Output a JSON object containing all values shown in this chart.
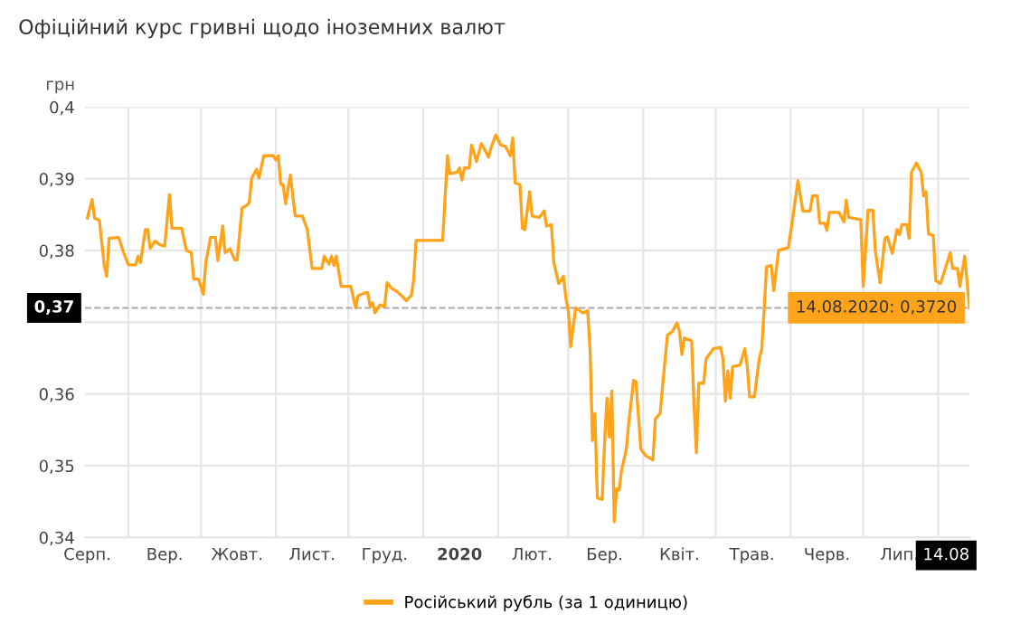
{
  "chart_data": {
    "type": "line",
    "title": "Офіційний курс гривні щодо іноземних валют",
    "ylabel": "грн",
    "x": [
      "2019-08-15",
      "2019-08-17",
      "2019-08-18",
      "2019-08-20",
      "2019-08-22",
      "2019-08-23",
      "2019-08-24",
      "2019-08-28",
      "2019-08-30",
      "2019-09-01",
      "2019-09-04",
      "2019-09-05",
      "2019-09-06",
      "2019-09-08",
      "2019-09-09",
      "2019-09-10",
      "2019-09-12",
      "2019-09-14",
      "2019-09-16",
      "2019-09-18",
      "2019-09-19",
      "2019-09-23",
      "2019-09-25",
      "2019-09-27",
      "2019-09-28",
      "2019-09-30",
      "2019-10-02",
      "2019-10-03",
      "2019-10-05",
      "2019-10-07",
      "2019-10-08",
      "2019-10-10",
      "2019-10-11",
      "2019-10-13",
      "2019-10-15",
      "2019-10-16",
      "2019-10-18",
      "2019-10-20",
      "2019-10-21",
      "2019-10-22",
      "2019-10-24",
      "2019-10-25",
      "2019-10-27",
      "2019-10-31",
      "2019-11-01",
      "2019-11-02",
      "2019-11-03",
      "2019-11-04",
      "2019-11-05",
      "2019-11-07",
      "2019-11-09",
      "2019-11-12",
      "2019-11-14",
      "2019-11-16",
      "2019-11-20",
      "2019-11-21",
      "2019-11-23",
      "2019-11-24",
      "2019-11-25",
      "2019-11-26",
      "2019-11-28",
      "2019-12-02",
      "2019-12-04",
      "2019-12-05",
      "2019-12-08",
      "2019-12-09",
      "2019-12-10",
      "2019-12-11",
      "2019-12-12",
      "2019-12-14",
      "2019-12-16",
      "2019-12-17",
      "2019-12-19",
      "2019-12-21",
      "2019-12-23",
      "2019-12-25",
      "2019-12-27",
      "2019-12-28",
      "2019-12-29",
      "2020-01-09",
      "2020-01-11",
      "2020-01-12",
      "2020-01-15",
      "2020-01-16",
      "2020-01-17",
      "2020-01-18",
      "2020-01-20",
      "2020-01-21",
      "2020-01-23",
      "2020-01-25",
      "2020-01-28",
      "2020-01-29",
      "2020-01-31",
      "2020-02-02",
      "2020-02-04",
      "2020-02-06",
      "2020-02-07",
      "2020-02-08",
      "2020-02-10",
      "2020-02-11",
      "2020-02-12",
      "2020-02-14",
      "2020-02-15",
      "2020-02-18",
      "2020-02-20",
      "2020-02-21",
      "2020-02-23",
      "2020-02-24",
      "2020-02-26",
      "2020-02-28",
      "2020-02-29",
      "2020-03-01",
      "2020-03-02",
      "2020-03-04",
      "2020-03-07",
      "2020-03-09",
      "2020-03-10",
      "2020-03-11",
      "2020-03-12",
      "2020-03-13",
      "2020-03-15",
      "2020-03-16",
      "2020-03-17",
      "2020-03-18",
      "2020-03-19",
      "2020-03-20",
      "2020-03-21",
      "2020-03-22",
      "2020-03-23",
      "2020-03-25",
      "2020-03-26",
      "2020-03-28",
      "2020-03-29",
      "2020-03-31",
      "2020-04-02",
      "2020-04-05",
      "2020-04-06",
      "2020-04-08",
      "2020-04-09",
      "2020-04-11",
      "2020-04-13",
      "2020-04-15",
      "2020-04-16",
      "2020-04-17",
      "2020-04-18",
      "2020-04-21",
      "2020-04-22",
      "2020-04-23",
      "2020-04-24",
      "2020-04-26",
      "2020-04-27",
      "2020-04-30",
      "2020-05-03",
      "2020-05-04",
      "2020-05-05",
      "2020-05-06",
      "2020-05-07",
      "2020-05-08",
      "2020-05-11",
      "2020-05-13",
      "2020-05-14",
      "2020-05-15",
      "2020-05-17",
      "2020-05-19",
      "2020-05-20",
      "2020-05-21",
      "2020-05-22",
      "2020-05-24",
      "2020-05-25",
      "2020-05-27",
      "2020-05-31",
      "2020-06-01",
      "2020-06-04",
      "2020-06-06",
      "2020-06-09",
      "2020-06-10",
      "2020-06-12",
      "2020-06-13",
      "2020-06-15",
      "2020-06-16",
      "2020-06-17",
      "2020-06-21",
      "2020-06-23",
      "2020-06-24",
      "2020-06-25",
      "2020-06-30",
      "2020-07-01",
      "2020-07-03",
      "2020-07-05",
      "2020-07-06",
      "2020-07-08",
      "2020-07-10",
      "2020-07-11",
      "2020-07-13",
      "2020-07-15",
      "2020-07-16",
      "2020-07-17",
      "2020-07-19",
      "2020-07-20",
      "2020-07-21",
      "2020-07-23",
      "2020-07-25",
      "2020-07-26",
      "2020-07-27",
      "2020-07-28",
      "2020-07-30",
      "2020-07-31",
      "2020-08-02",
      "2020-08-04",
      "2020-08-06",
      "2020-08-07",
      "2020-08-09",
      "2020-08-10",
      "2020-08-12",
      "2020-08-14"
    ],
    "series": [
      {
        "name": "Російський рубль (за 1 одиницю)",
        "color": "#ffa31a",
        "values": [
          0.3845,
          0.3871,
          0.3845,
          0.3842,
          0.3779,
          0.3764,
          0.3817,
          0.3818,
          0.3797,
          0.378,
          0.378,
          0.3792,
          0.3783,
          0.3829,
          0.3829,
          0.3803,
          0.3813,
          0.3808,
          0.3806,
          0.3878,
          0.3831,
          0.3831,
          0.38,
          0.3797,
          0.376,
          0.376,
          0.3739,
          0.3783,
          0.3818,
          0.3818,
          0.3786,
          0.3834,
          0.3797,
          0.3802,
          0.3787,
          0.3787,
          0.3859,
          0.3863,
          0.3867,
          0.3901,
          0.3913,
          0.3901,
          0.3932,
          0.3932,
          0.3926,
          0.3932,
          0.3892,
          0.3892,
          0.3865,
          0.3905,
          0.3848,
          0.3848,
          0.3829,
          0.3775,
          0.3775,
          0.3792,
          0.3781,
          0.3792,
          0.3779,
          0.3792,
          0.375,
          0.375,
          0.372,
          0.3737,
          0.3741,
          0.3741,
          0.3722,
          0.3727,
          0.3713,
          0.3724,
          0.3722,
          0.3755,
          0.3747,
          0.3743,
          0.3737,
          0.373,
          0.3737,
          0.3758,
          0.3814,
          0.3814,
          0.3932,
          0.3907,
          0.3909,
          0.3915,
          0.3898,
          0.3915,
          0.3915,
          0.3947,
          0.3924,
          0.3949,
          0.393,
          0.3943,
          0.3961,
          0.3947,
          0.3945,
          0.3932,
          0.3957,
          0.3894,
          0.3892,
          0.3831,
          0.3829,
          0.3882,
          0.3848,
          0.3846,
          0.3855,
          0.3834,
          0.3836,
          0.3783,
          0.3754,
          0.3764,
          0.3733,
          0.3716,
          0.3666,
          0.372,
          0.3713,
          0.3716,
          0.3661,
          0.3535,
          0.3573,
          0.3455,
          0.3453,
          0.3531,
          0.3594,
          0.354,
          0.3604,
          0.3422,
          0.3468,
          0.3466,
          0.3493,
          0.3523,
          0.356,
          0.3619,
          0.3617,
          0.3523,
          0.3514,
          0.3508,
          0.3565,
          0.3573,
          0.3611,
          0.3682,
          0.3687,
          0.3699,
          0.3687,
          0.3655,
          0.3678,
          0.3674,
          0.3586,
          0.3518,
          0.3615,
          0.3615,
          0.3649,
          0.3663,
          0.3665,
          0.3649,
          0.359,
          0.3632,
          0.3594,
          0.3638,
          0.364,
          0.3663,
          0.364,
          0.3596,
          0.3596,
          0.3649,
          0.3662,
          0.3716,
          0.3777,
          0.3779,
          0.3744,
          0.38,
          0.3804,
          0.3825,
          0.3897,
          0.3855,
          0.3855,
          0.3876,
          0.3876,
          0.3838,
          0.3838,
          0.3828,
          0.3853,
          0.3853,
          0.384,
          0.387,
          0.3846,
          0.3843,
          0.375,
          0.3856,
          0.3856,
          0.38,
          0.3755,
          0.3817,
          0.3819,
          0.3796,
          0.3829,
          0.3822,
          0.3836,
          0.3836,
          0.3817,
          0.3909,
          0.3922,
          0.3909,
          0.3876,
          0.3882,
          0.3823,
          0.3821,
          0.3758,
          0.3754,
          0.3775,
          0.3797,
          0.3775,
          0.3775,
          0.375,
          0.3792,
          0.372
        ]
      }
    ],
    "xlim": [
      "2019-08-14",
      "2020-08-14"
    ],
    "xticks": [
      {
        "value": "2019-08-15",
        "label": "Серп."
      },
      {
        "value": "2019-09-01",
        "label": null
      },
      {
        "value": "2019-09-16",
        "label": "Вер."
      },
      {
        "value": "2019-10-01",
        "label": null
      },
      {
        "value": "2019-10-16",
        "label": "Жовт."
      },
      {
        "value": "2019-11-01",
        "label": null
      },
      {
        "value": "2019-11-16",
        "label": "Лист."
      },
      {
        "value": "2019-12-01",
        "label": null
      },
      {
        "value": "2019-12-16",
        "label": "Груд."
      },
      {
        "value": "2020-01-01",
        "label": null
      },
      {
        "value": "2020-01-16",
        "label": "2020"
      },
      {
        "value": "2020-02-01",
        "label": null
      },
      {
        "value": "2020-02-15",
        "label": "Лют."
      },
      {
        "value": "2020-03-01",
        "label": null
      },
      {
        "value": "2020-03-16",
        "label": "Бер."
      },
      {
        "value": "2020-04-01",
        "label": null
      },
      {
        "value": "2020-04-16",
        "label": "Квіт."
      },
      {
        "value": "2020-05-01",
        "label": null
      },
      {
        "value": "2020-05-16",
        "label": "Трав."
      },
      {
        "value": "2020-06-01",
        "label": null
      },
      {
        "value": "2020-06-16",
        "label": "Черв."
      },
      {
        "value": "2020-07-01",
        "label": null
      },
      {
        "value": "2020-07-16",
        "label": "Лип."
      },
      {
        "value": "2020-08-01",
        "label": null
      },
      {
        "value": "2020-08-14",
        "label": "14.08"
      }
    ],
    "ylim": [
      0.34,
      0.4
    ],
    "yticks": [
      {
        "value": 0.34,
        "label": "0,34"
      },
      {
        "value": 0.35,
        "label": "0,35"
      },
      {
        "value": 0.36,
        "label": "0,36"
      },
      {
        "value": 0.37,
        "label": null
      },
      {
        "value": 0.38,
        "label": "0,38"
      },
      {
        "value": 0.39,
        "label": "0,39"
      },
      {
        "value": 0.4,
        "label": "0,4"
      }
    ],
    "ref_lines": [
      {
        "axis": "y",
        "value": 0.372,
        "label": "0,37",
        "color": "#aaaaaa",
        "line_style": "dashed"
      }
    ],
    "annotations": [
      {
        "text": "14.08.2020: 0,3720",
        "x": "2020-08-14",
        "y": 0.372
      }
    ],
    "grid": true,
    "legend": "bottom",
    "marker": "none",
    "line_style": "solid"
  }
}
